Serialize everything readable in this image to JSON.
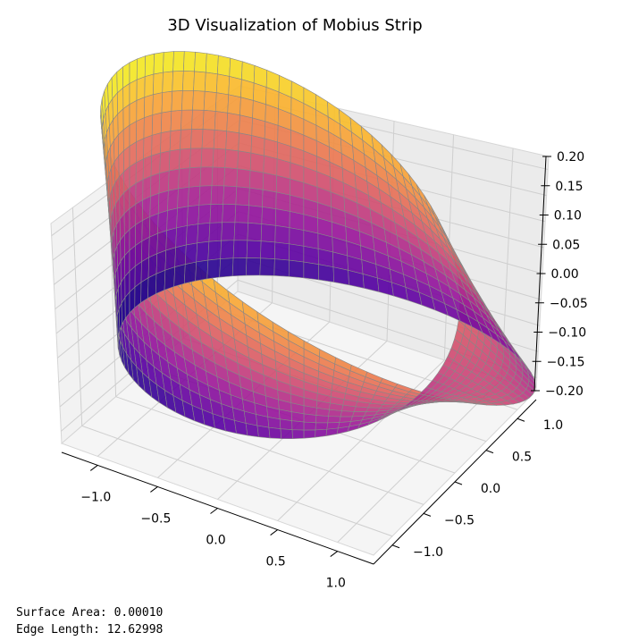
{
  "chart_data": {
    "type": "surface3d",
    "title": "3D Visualization of Mobius Strip",
    "xlabel": "",
    "ylabel": "",
    "zlabel": "",
    "x_ticks": [
      "−1.0",
      "−0.5",
      "0.0",
      "0.5",
      "1.0"
    ],
    "y_ticks": [
      "−1.0",
      "−0.5",
      "0.0",
      "0.5",
      "1.0"
    ],
    "z_ticks": [
      "−0.20",
      "−0.15",
      "−0.10",
      "−0.05",
      "0.00",
      "0.05",
      "0.10",
      "0.15",
      "0.20"
    ],
    "xlim": [
      -1.2,
      1.2
    ],
    "ylim": [
      -1.2,
      1.2
    ],
    "zlim": [
      -0.2,
      0.2
    ],
    "surface": {
      "shape": "mobius strip",
      "radius": 1.0,
      "width": 0.2,
      "colormap": "plasma",
      "edge_color": "#888888"
    },
    "grid": true
  },
  "output": {
    "surface_area": "Surface Area: 0.00010",
    "edge_length": "Edge Length: 12.62998"
  }
}
